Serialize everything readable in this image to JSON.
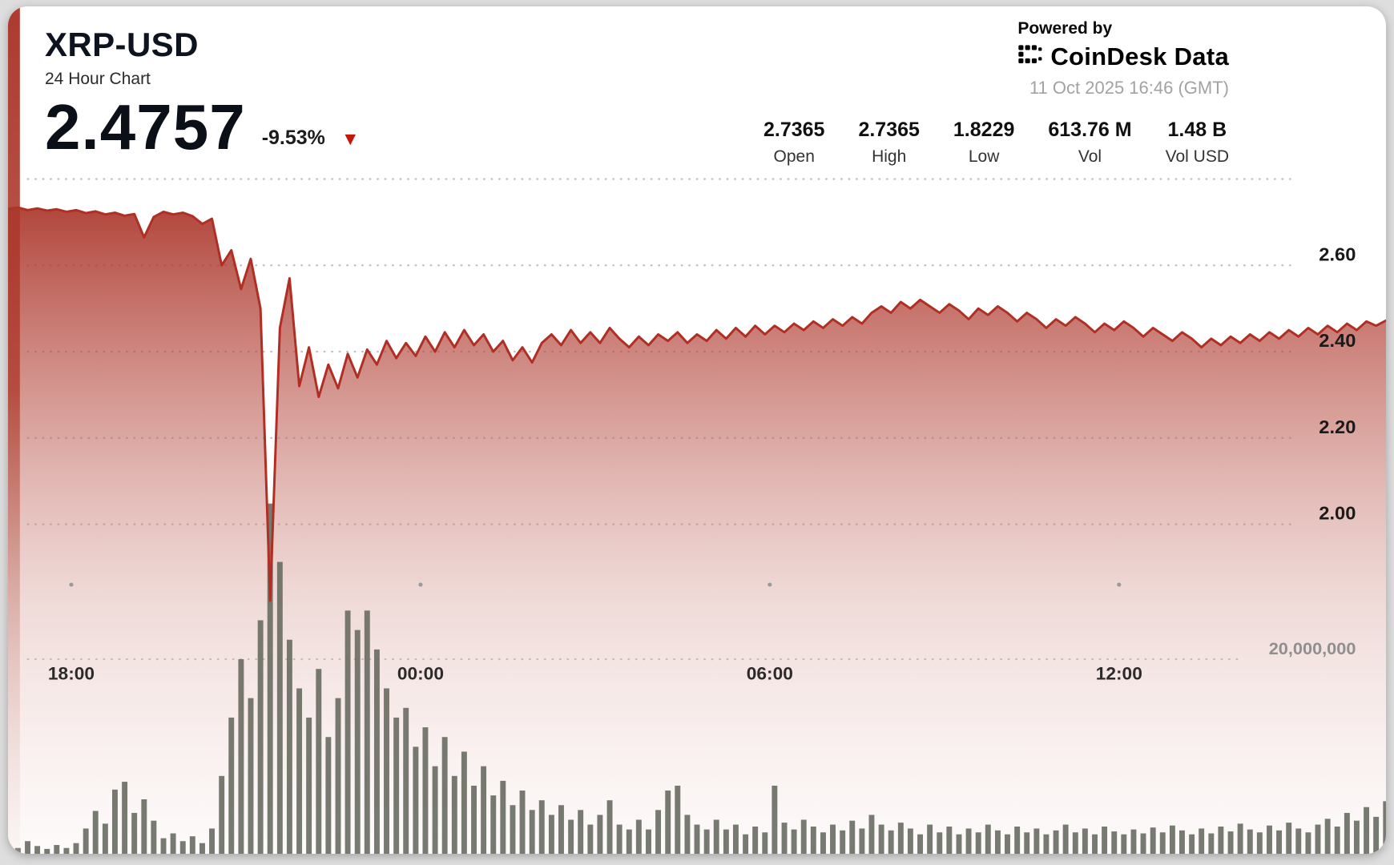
{
  "header": {
    "title": "XRP-USD",
    "subtitle": "24 Hour Chart",
    "price": "2.4757",
    "change": "-9.53%",
    "direction": "down"
  },
  "icons": {
    "down_triangle": "▼"
  },
  "branding": {
    "powered_by": "Powered by",
    "logo": "CoinDesk Data",
    "timestamp": "11 Oct 2025 16:46 (GMT)"
  },
  "stats": {
    "items": [
      {
        "value": "2.7365",
        "label": "Open"
      },
      {
        "value": "2.7365",
        "label": "High"
      },
      {
        "value": "1.8229",
        "label": "Low"
      },
      {
        "value": "613.76 M",
        "label": "Vol"
      },
      {
        "value": "1.48 B",
        "label": "Vol USD"
      }
    ]
  },
  "colors": {
    "line": "#b02e23",
    "area_top": "#a93226",
    "volume_bar": "#686c61",
    "triangle": "#c2170b",
    "grid": "#bdbdbd",
    "tick_dot": "#9a9a9a"
  },
  "chart_data": {
    "type": "area",
    "title": "XRP-USD 24 Hour Chart",
    "pair": "XRP-USD",
    "timespan_hours": 24,
    "sample_interval_minutes": 10,
    "open": 2.7365,
    "high": 2.7365,
    "low": 1.8229,
    "last": 2.4757,
    "change_percent": -9.53,
    "volume": "613.76 M",
    "volume_usd": "1.48 B",
    "x_ticks": [
      {
        "t": 1.25,
        "label": "18:00"
      },
      {
        "t": 7.25,
        "label": "00:00"
      },
      {
        "t": 13.25,
        "label": "06:00"
      },
      {
        "t": 19.25,
        "label": "12:00"
      }
    ],
    "price_axis": {
      "ticks": [
        {
          "value": 2.8,
          "label": ""
        },
        {
          "value": 2.6,
          "label": "2.60"
        },
        {
          "value": 2.4,
          "label": "2.40"
        },
        {
          "value": 2.2,
          "label": "2.20"
        },
        {
          "value": 2.0,
          "label": "2.00"
        }
      ]
    },
    "volume_axis": {
      "ticks": [
        {
          "value": 20,
          "label": "20,000,000"
        }
      ],
      "unit": "millions"
    },
    "prices": [
      2.7365,
      2.731,
      2.734,
      2.728,
      2.732,
      2.727,
      2.73,
      2.724,
      2.728,
      2.721,
      2.725,
      2.718,
      2.722,
      2.715,
      2.719,
      2.665,
      2.712,
      2.724,
      2.718,
      2.722,
      2.714,
      2.696,
      2.708,
      2.6,
      2.635,
      2.545,
      2.615,
      2.5,
      1.8229,
      2.455,
      2.57,
      2.32,
      2.41,
      2.295,
      2.37,
      2.315,
      2.395,
      2.34,
      2.405,
      2.37,
      2.425,
      2.385,
      2.42,
      2.39,
      2.435,
      2.4,
      2.445,
      2.41,
      2.45,
      2.415,
      2.44,
      2.4,
      2.425,
      2.38,
      2.41,
      2.375,
      2.42,
      2.44,
      2.415,
      2.45,
      2.42,
      2.445,
      2.42,
      2.455,
      2.43,
      2.41,
      2.435,
      2.415,
      2.44,
      2.425,
      2.445,
      2.42,
      2.44,
      2.425,
      2.45,
      2.43,
      2.455,
      2.435,
      2.46,
      2.44,
      2.46,
      2.445,
      2.465,
      2.45,
      2.47,
      2.455,
      2.475,
      2.46,
      2.48,
      2.465,
      2.49,
      2.505,
      2.49,
      2.515,
      2.5,
      2.52,
      2.505,
      2.49,
      2.51,
      2.495,
      2.475,
      2.5,
      2.485,
      2.505,
      2.49,
      2.47,
      2.49,
      2.475,
      2.455,
      2.475,
      2.46,
      2.48,
      2.465,
      2.445,
      2.465,
      2.45,
      2.47,
      2.455,
      2.435,
      2.455,
      2.44,
      2.425,
      2.445,
      2.43,
      2.41,
      2.43,
      2.415,
      2.435,
      2.42,
      2.44,
      2.425,
      2.445,
      2.43,
      2.45,
      2.435,
      2.455,
      2.44,
      2.46,
      2.445,
      2.465,
      2.45,
      2.47,
      2.46,
      2.472,
      2.4757
    ],
    "volumes_millions": [
      0.7,
      1.0,
      0.6,
      1.3,
      0.8,
      0.5,
      0.9,
      0.6,
      1.1,
      2.6,
      4.4,
      3.1,
      6.6,
      7.4,
      4.2,
      5.6,
      3.4,
      1.6,
      2.1,
      1.3,
      1.8,
      1.1,
      2.6,
      8.0,
      14,
      20,
      16,
      24,
      36,
      30,
      22,
      17,
      14,
      19,
      12,
      16,
      25,
      23,
      25,
      21,
      17,
      14,
      15,
      11,
      13,
      9,
      12,
      8,
      10.5,
      7,
      9,
      6,
      7.5,
      5,
      6.5,
      4.5,
      5.5,
      4,
      5,
      3.5,
      4.5,
      3,
      4,
      5.5,
      3,
      2.5,
      3.5,
      2.5,
      4.5,
      6.5,
      7,
      4,
      3,
      2.5,
      3.5,
      2.5,
      3,
      2,
      2.8,
      2.2,
      7,
      3.2,
      2.5,
      3.5,
      2.8,
      2.2,
      3,
      2.4,
      3.4,
      2.6,
      4,
      3,
      2.4,
      3.2,
      2.6,
      2,
      3,
      2.2,
      2.8,
      2,
      2.6,
      2.2,
      3,
      2.4,
      2,
      2.8,
      2.2,
      2.6,
      2,
      2.4,
      3,
      2.2,
      2.6,
      2,
      2.8,
      2.3,
      2,
      2.5,
      2.1,
      2.7,
      2.2,
      2.9,
      2.4,
      2,
      2.6,
      2.1,
      2.8,
      2.3,
      3.1,
      2.5,
      2.2,
      2.9,
      2.4,
      3.2,
      2.6,
      2.2,
      3,
      3.6,
      2.8,
      4.2,
      3.4,
      4.8,
      3.8,
      5.4,
      4.6
    ]
  }
}
